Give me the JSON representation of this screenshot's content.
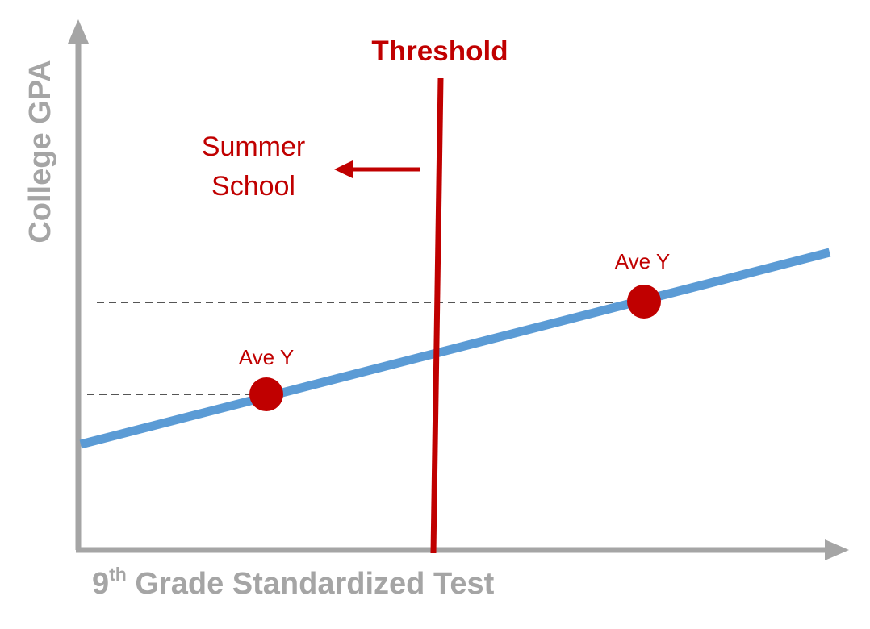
{
  "labels": {
    "threshold": "Threshold",
    "summer_school_line1": "Summer",
    "summer_school_line2": "School",
    "ave_y_left": "Ave Y",
    "ave_y_right": "Ave Y",
    "x_axis_base": "9",
    "x_axis_superscript": "th",
    "x_axis_rest": " Grade Standardized Test",
    "y_axis": "College GPA"
  },
  "colors": {
    "axis": "#a5a5a5",
    "regression_line": "#5b9bd5",
    "accent": "#c00000",
    "dashed": "#555555"
  }
}
